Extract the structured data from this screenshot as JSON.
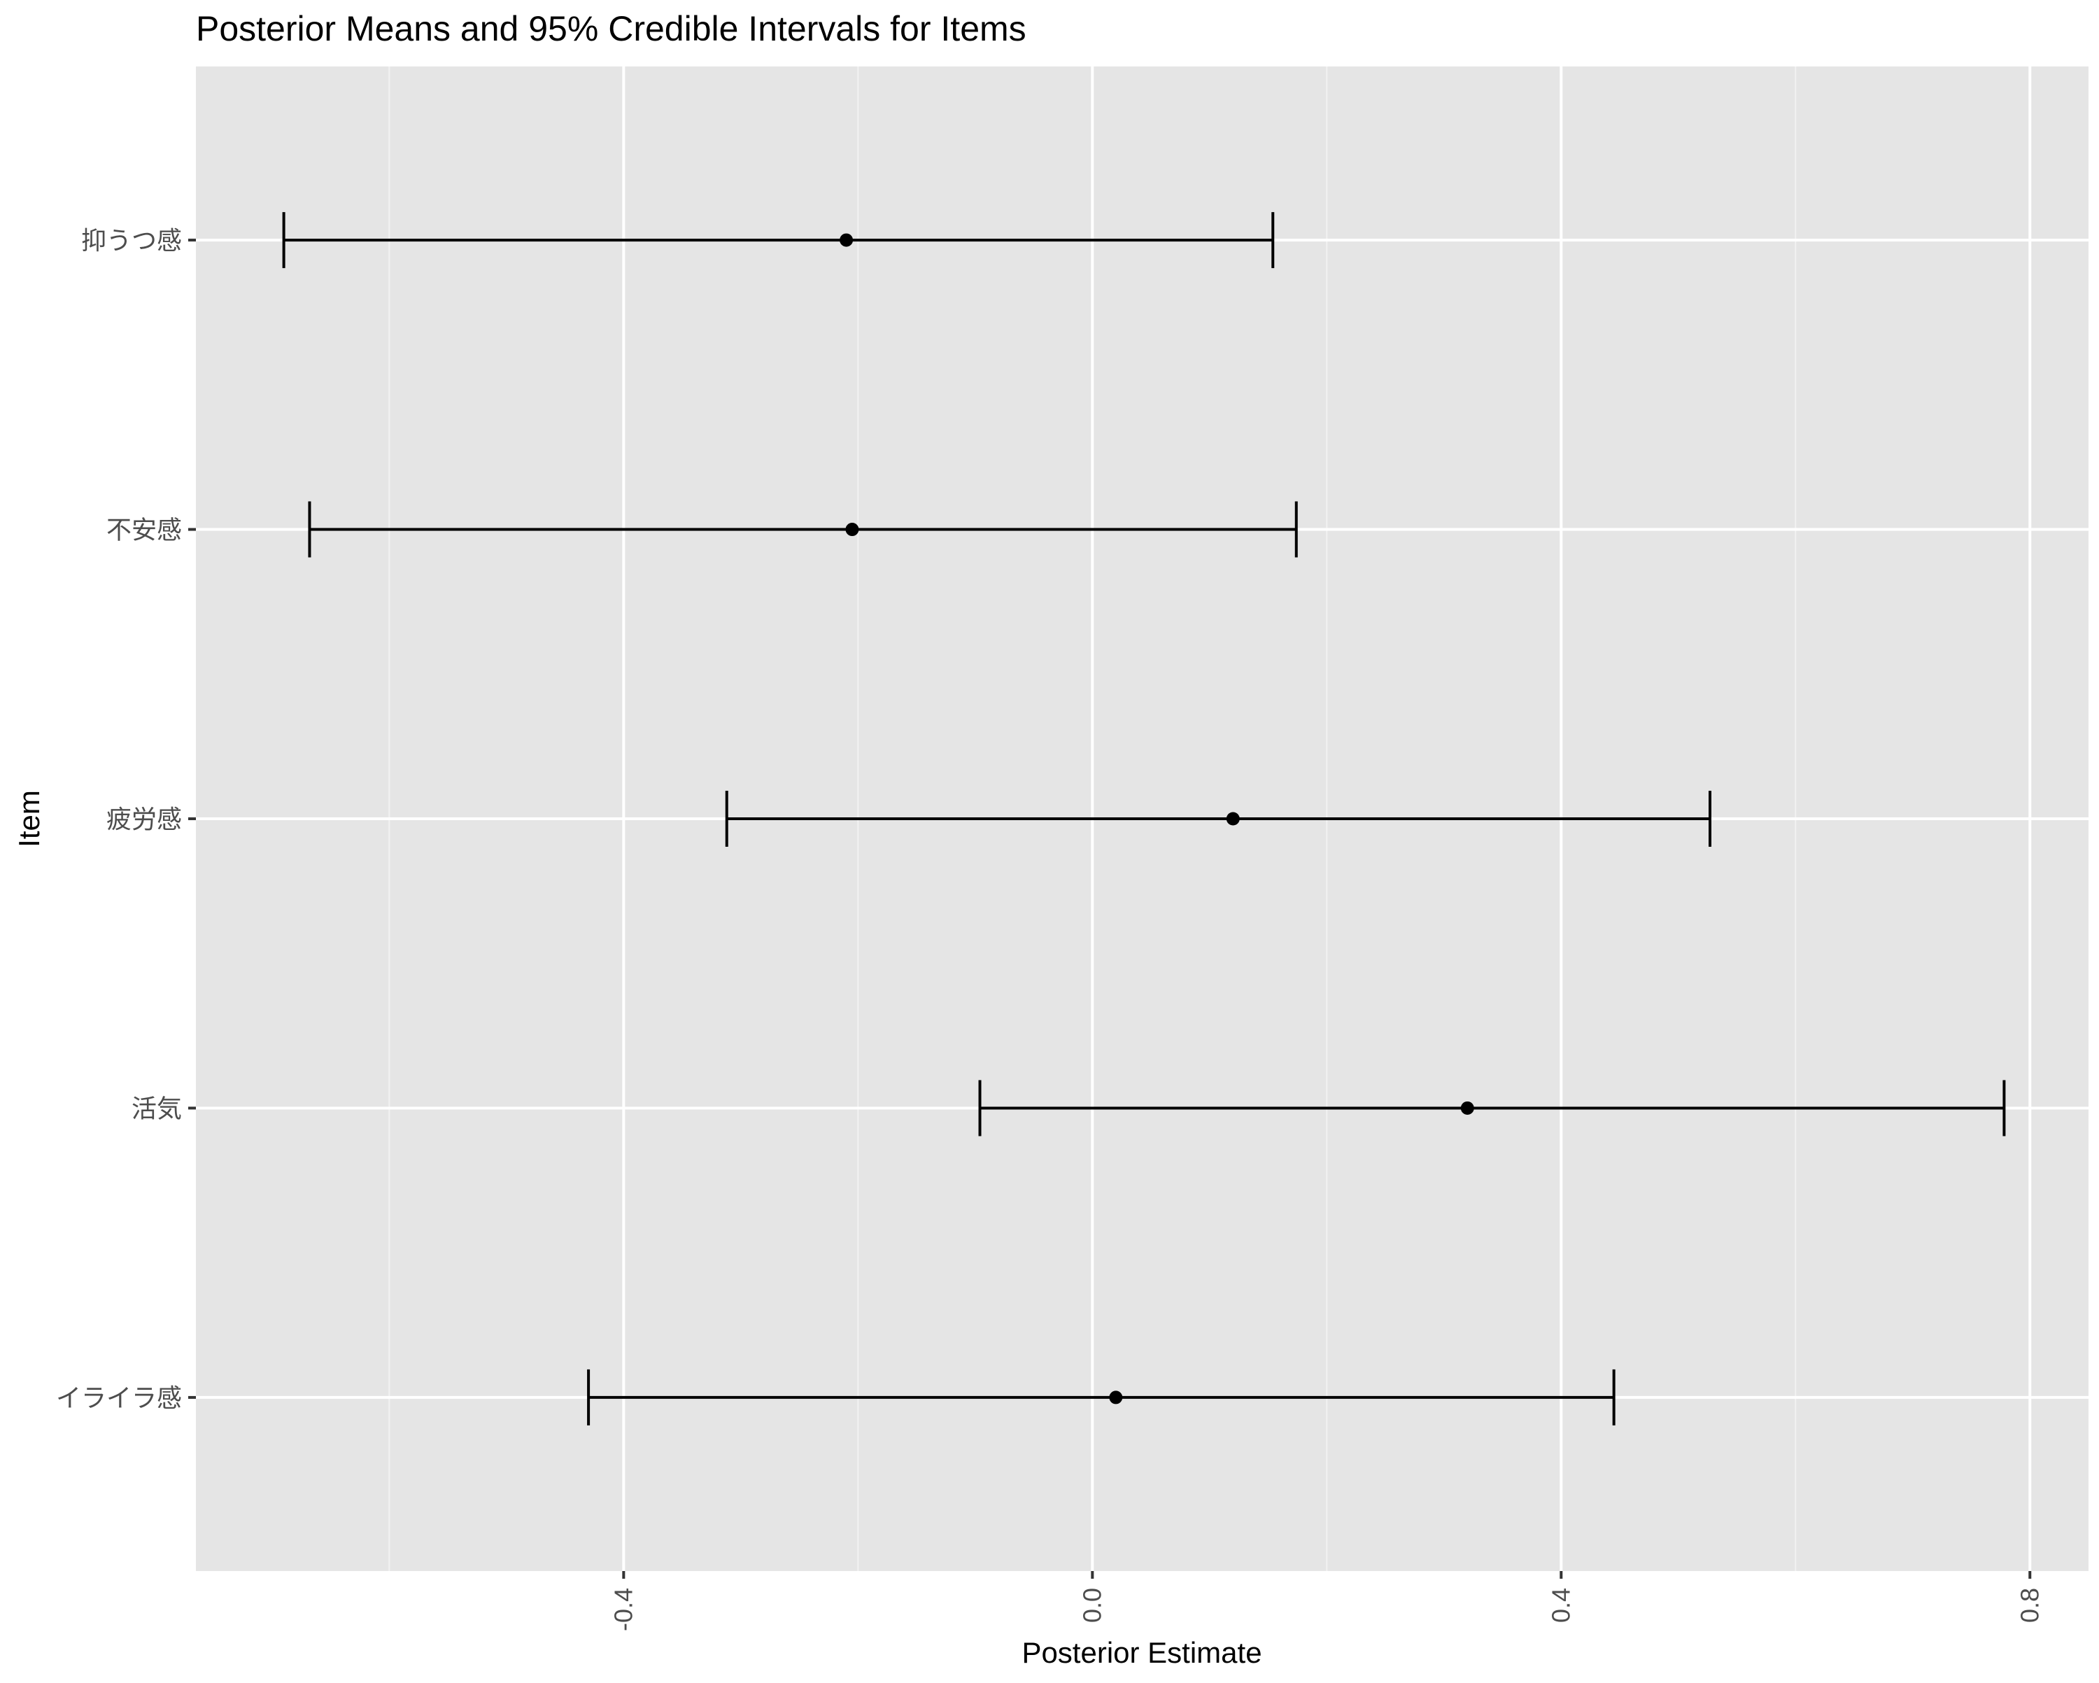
{
  "chart_data": {
    "type": "errorbar",
    "title": "Posterior Means and 95% Credible Intervals for Items",
    "xlabel": "Posterior Estimate",
    "ylabel": "Item",
    "xlim": [
      -0.765,
      0.85
    ],
    "x_ticks": [
      -0.4,
      0.0,
      0.4,
      0.8
    ],
    "x_tick_labels": [
      "-0.4",
      "0.0",
      "0.4",
      "0.8"
    ],
    "grid": true,
    "categories": [
      "抑うつ感",
      "不安感",
      "疲労感",
      "活気",
      "イライラ感"
    ],
    "series": [
      {
        "mean": [
          -0.21,
          -0.205,
          0.12,
          0.32,
          0.02
        ],
        "lower": [
          -0.69,
          -0.668,
          -0.312,
          -0.096,
          -0.43
        ],
        "upper": [
          0.154,
          0.174,
          0.527,
          0.778,
          0.445
        ]
      }
    ],
    "colors": {
      "panel": "#e5e5e5",
      "grid_major": "#ffffff",
      "grid_minor": "#f2f2f2",
      "marks": "#000000",
      "text": "#000000",
      "tick_label": "#4d4d4d",
      "tick": "#333333"
    }
  }
}
